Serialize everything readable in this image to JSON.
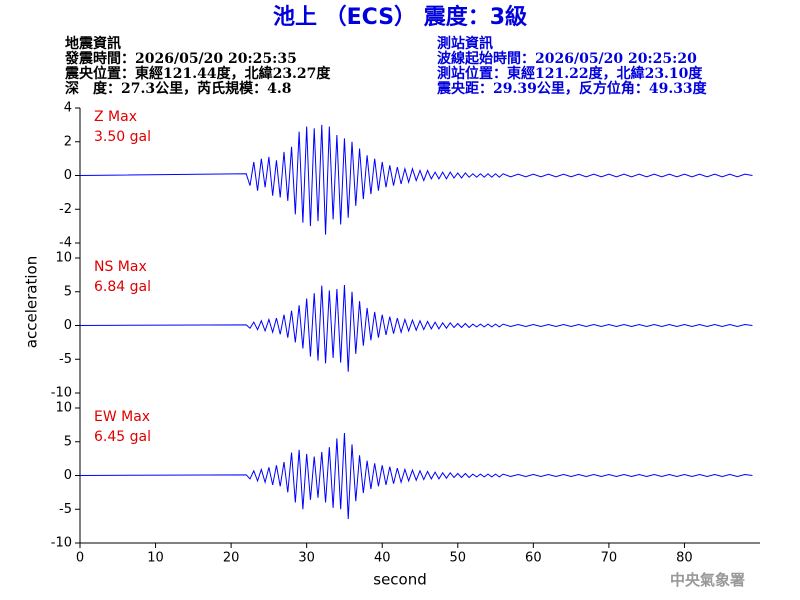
{
  "title": "池上 （ECS） 震度：3級",
  "quake": {
    "heading": "地震資訊",
    "time": "發震時間：2026/05/20 20:25:35",
    "epicenter": "震央位置：東經121.44度，北緯23.27度",
    "depth": "深　度：27.3公里，芮氏規模：4.8"
  },
  "station": {
    "heading": "測站資訊",
    "start": "波線起始時間：2026/05/20 20:25:20",
    "location": "測站位置：東經121.22度，北緯23.10度",
    "distance": "震央距：29.39公里，反方位角：49.33度"
  },
  "axes": {
    "xlabel": "second",
    "ylabel": "acceleration",
    "xlim": [
      0,
      90
    ],
    "xticks": [
      0,
      10,
      20,
      30,
      40,
      50,
      60,
      70,
      80
    ]
  },
  "footer": "中央氣象署",
  "chart_data": [
    {
      "type": "line",
      "name": "Z Max",
      "max_label": "3.50 gal",
      "color": "#0000ff",
      "ylim": [
        -4,
        4
      ],
      "yticks": [
        -4,
        -2,
        0,
        2,
        4
      ],
      "x": [
        0,
        22,
        22.5,
        23,
        23.5,
        24,
        24.5,
        25,
        25.5,
        26,
        26.5,
        27,
        27.5,
        28,
        28.5,
        29,
        29.5,
        30,
        30.5,
        31,
        31.5,
        32,
        32.5,
        33,
        33.5,
        34,
        34.5,
        35,
        35.5,
        36,
        36.5,
        37,
        37.5,
        38,
        38.5,
        39,
        39.5,
        40,
        40.5,
        41,
        41.5,
        42,
        42.5,
        43,
        43.5,
        44,
        44.5,
        45,
        45.5,
        46,
        46.5,
        47,
        47.5,
        48,
        48.5,
        49,
        49.5,
        50,
        50.5,
        51,
        51.5,
        52,
        52.5,
        53,
        53.5,
        54,
        54.5,
        55,
        55.5,
        56,
        57,
        58,
        59,
        60,
        61,
        62,
        63,
        64,
        65,
        66,
        67,
        68,
        69,
        70,
        71,
        72,
        73,
        74,
        75,
        76,
        77,
        78,
        79,
        80,
        81,
        82,
        83,
        84,
        85,
        86,
        87,
        88,
        89
      ],
      "values": [
        0,
        0.1,
        -0.6,
        0.8,
        -0.9,
        1.0,
        -0.7,
        1.1,
        -1.2,
        0.9,
        -1.3,
        1.4,
        -1.5,
        1.7,
        -2.3,
        2.6,
        -2.8,
        2.9,
        -3.0,
        2.8,
        -2.7,
        3.0,
        -3.5,
        2.9,
        -2.6,
        2.4,
        -2.9,
        2.2,
        -2.5,
        2.0,
        -1.8,
        1.6,
        -1.4,
        1.2,
        -1.1,
        1.0,
        -0.9,
        0.8,
        -0.7,
        0.6,
        -0.6,
        0.5,
        -0.5,
        0.4,
        -0.4,
        0.4,
        -0.3,
        0.3,
        -0.3,
        0.3,
        -0.2,
        0.2,
        -0.2,
        0.2,
        -0.2,
        0.2,
        -0.15,
        0.15,
        -0.15,
        0.15,
        -0.1,
        0.1,
        -0.1,
        0.1,
        -0.1,
        0.1,
        -0.1,
        0.1,
        -0.1,
        0.1,
        -0.08,
        0.08,
        -0.08,
        0.08,
        -0.08,
        0.08,
        -0.08,
        0.08,
        -0.08,
        0.08,
        -0.08,
        0.08,
        -0.08,
        0.08,
        -0.08,
        0.08,
        -0.08,
        0.08,
        -0.08,
        0.08,
        -0.08,
        0.08,
        -0.08,
        0.08,
        -0.08,
        0.08,
        -0.08,
        0.08,
        -0.08,
        0.08,
        -0.08,
        0.08,
        0
      ]
    },
    {
      "type": "line",
      "name": "NS Max",
      "max_label": "6.84 gal",
      "color": "#0000ff",
      "ylim": [
        -10,
        10
      ],
      "yticks": [
        -10,
        -5,
        0,
        5,
        10
      ],
      "x": [
        0,
        22,
        22.5,
        23,
        23.5,
        24,
        24.5,
        25,
        25.5,
        26,
        26.5,
        27,
        27.5,
        28,
        28.5,
        29,
        29.5,
        30,
        30.5,
        31,
        31.5,
        32,
        32.5,
        33,
        33.5,
        34,
        34.5,
        35,
        35.5,
        36,
        36.5,
        37,
        37.5,
        38,
        38.5,
        39,
        39.5,
        40,
        40.5,
        41,
        41.5,
        42,
        42.5,
        43,
        43.5,
        44,
        44.5,
        45,
        45.5,
        46,
        46.5,
        47,
        47.5,
        48,
        48.5,
        49,
        49.5,
        50,
        50.5,
        51,
        51.5,
        52,
        52.5,
        53,
        53.5,
        54,
        54.5,
        55,
        55.5,
        56,
        57,
        58,
        59,
        60,
        61,
        62,
        63,
        64,
        65,
        66,
        67,
        68,
        69,
        70,
        71,
        72,
        73,
        74,
        75,
        76,
        77,
        78,
        79,
        80,
        81,
        82,
        83,
        84,
        85,
        86,
        87,
        88,
        89
      ],
      "values": [
        0,
        0.1,
        -0.4,
        0.5,
        -0.6,
        0.7,
        -0.8,
        0.9,
        -1.0,
        1.1,
        -1.3,
        1.6,
        -1.8,
        2.2,
        -2.5,
        3.0,
        -3.4,
        4.0,
        -4.6,
        4.8,
        -5.2,
        5.9,
        -5.6,
        5.2,
        -4.8,
        5.4,
        -5.5,
        6.0,
        -6.84,
        5.0,
        -4.2,
        3.6,
        -3.0,
        2.6,
        -2.2,
        2.0,
        -1.8,
        1.6,
        -1.4,
        1.3,
        -1.2,
        1.1,
        -1.0,
        0.9,
        -0.8,
        0.8,
        -0.7,
        0.7,
        -0.6,
        0.6,
        -0.5,
        0.5,
        -0.5,
        0.4,
        -0.4,
        0.4,
        -0.3,
        0.3,
        -0.3,
        0.3,
        -0.3,
        0.2,
        -0.2,
        0.2,
        -0.2,
        0.2,
        -0.2,
        0.2,
        -0.2,
        0.2,
        -0.15,
        0.15,
        -0.15,
        0.15,
        -0.15,
        0.15,
        -0.15,
        0.15,
        -0.15,
        0.15,
        -0.15,
        0.15,
        -0.15,
        0.15,
        -0.15,
        0.15,
        -0.15,
        0.15,
        -0.15,
        0.15,
        -0.15,
        0.15,
        -0.15,
        0.15,
        -0.15,
        0.15,
        -0.15,
        0.15,
        -0.15,
        0.15,
        -0.15,
        0.15,
        0
      ]
    },
    {
      "type": "line",
      "name": "EW Max",
      "max_label": "6.45 gal",
      "color": "#0000ff",
      "ylim": [
        -10,
        10
      ],
      "yticks": [
        -10,
        -5,
        0,
        5,
        10
      ],
      "x": [
        0,
        22,
        22.5,
        23,
        23.5,
        24,
        24.5,
        25,
        25.5,
        26,
        26.5,
        27,
        27.5,
        28,
        28.5,
        29,
        29.5,
        30,
        30.5,
        31,
        31.5,
        32,
        32.5,
        33,
        33.5,
        34,
        34.5,
        35,
        35.5,
        36,
        36.5,
        37,
        37.5,
        38,
        38.5,
        39,
        39.5,
        40,
        40.5,
        41,
        41.5,
        42,
        42.5,
        43,
        43.5,
        44,
        44.5,
        45,
        45.5,
        46,
        46.5,
        47,
        47.5,
        48,
        48.5,
        49,
        49.5,
        50,
        50.5,
        51,
        51.5,
        52,
        52.5,
        53,
        53.5,
        54,
        54.5,
        55,
        55.5,
        56,
        57,
        58,
        59,
        60,
        61,
        62,
        63,
        64,
        65,
        66,
        67,
        68,
        69,
        70,
        71,
        72,
        73,
        74,
        75,
        76,
        77,
        78,
        79,
        80,
        81,
        82,
        83,
        84,
        85,
        86,
        87,
        88,
        89
      ],
      "values": [
        0,
        0.1,
        -0.5,
        0.7,
        -0.8,
        0.9,
        -1.0,
        1.2,
        -1.4,
        1.5,
        -1.6,
        2.0,
        -2.5,
        3.4,
        -4.0,
        3.8,
        -5.0,
        3.2,
        -3.6,
        2.8,
        -3.3,
        3.5,
        -4.0,
        4.2,
        -4.8,
        5.5,
        -5.0,
        6.3,
        -6.45,
        4.6,
        -3.8,
        3.0,
        -2.6,
        2.2,
        -2.0,
        1.8,
        -1.6,
        1.5,
        -1.4,
        1.3,
        -1.2,
        1.1,
        -1.0,
        0.9,
        -0.8,
        0.8,
        -0.7,
        0.7,
        -0.6,
        0.6,
        -0.5,
        0.5,
        -0.5,
        0.4,
        -0.4,
        0.4,
        -0.3,
        0.3,
        -0.3,
        0.3,
        -0.3,
        0.2,
        -0.2,
        0.2,
        -0.2,
        0.2,
        -0.2,
        0.2,
        -0.2,
        0.2,
        -0.15,
        0.15,
        -0.15,
        0.15,
        -0.15,
        0.15,
        -0.15,
        0.15,
        -0.15,
        0.15,
        -0.15,
        0.15,
        -0.15,
        0.15,
        -0.15,
        0.15,
        -0.15,
        0.15,
        -0.15,
        0.15,
        -0.15,
        0.15,
        -0.15,
        0.15,
        -0.15,
        0.15,
        -0.15,
        0.15,
        -0.15,
        0.15,
        -0.15,
        0.15,
        0
      ]
    }
  ]
}
